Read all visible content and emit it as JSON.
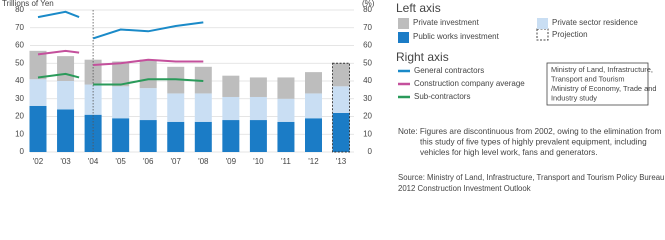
{
  "chart_data": {
    "type": "bar_line",
    "y_axis_label": "Trillions of Yen",
    "y2_axis_label": "(%)",
    "categories": [
      "'02",
      "'03",
      "'04",
      "'05",
      "'06",
      "'07",
      "'08",
      "'09",
      "'10",
      "'11",
      "'12",
      "'13"
    ],
    "ylim": [
      0,
      80
    ],
    "yticks": [
      0,
      10,
      20,
      30,
      40,
      50,
      60,
      70,
      80
    ],
    "y2lim": [
      0,
      80
    ],
    "y2ticks": [
      0,
      10,
      20,
      30,
      40,
      50,
      60,
      70,
      80
    ],
    "grid": true,
    "discontinuity_category": "'04",
    "projection_category": "'13",
    "left_axis_title": "Left axis",
    "right_axis_title": "Right axis",
    "projection_label": "Projection",
    "series": [
      {
        "name": "Public works investment",
        "color": "#1b7cc6",
        "values": [
          26,
          24,
          21,
          19,
          18,
          17,
          17,
          18,
          18,
          17,
          19,
          22
        ]
      },
      {
        "name": "Private sector residence",
        "color": "#c9def3",
        "values": [
          15,
          16,
          17,
          18,
          18,
          16,
          16,
          13,
          13,
          13,
          14,
          15
        ]
      },
      {
        "name": "Private investment",
        "color": "#bdbdbd",
        "values": [
          16,
          14,
          14,
          14,
          16,
          15,
          15,
          12,
          11,
          12,
          12,
          13
        ]
      },
      {
        "name": "General contractors",
        "color": "#1a8ac8",
        "axis": "y2",
        "x": [
          "'02",
          "'03",
          "'04",
          "'04",
          "'04",
          "'05",
          "'06",
          "'07",
          "'08"
        ],
        "values": [
          76,
          79,
          76,
          null,
          64,
          69,
          68,
          71,
          73
        ]
      },
      {
        "name": "Construction company average",
        "color": "#c4509c",
        "axis": "y2",
        "x": [
          "'02",
          "'03",
          "'04",
          "'04",
          "'04",
          "'05",
          "'06",
          "'07",
          "'08"
        ],
        "values": [
          55,
          57,
          56,
          null,
          49,
          50,
          52,
          51,
          51
        ]
      },
      {
        "name": "Sub-contractors",
        "color": "#2a9a5a",
        "axis": "y2",
        "x": [
          "'02",
          "'03",
          "'04",
          "'04",
          "'04",
          "'05",
          "'06",
          "'07",
          "'08"
        ],
        "values": [
          42,
          44,
          42,
          null,
          38,
          38,
          41,
          41,
          40
        ]
      }
    ],
    "source_box": [
      "Ministry of Land, Infrastructure,",
      "Transport and Tourism",
      "/Ministry of Economy, Trade and",
      "Industry study"
    ],
    "note": [
      "Note: Figures are discontinuous from 2002, owing to the elimination from",
      "this study of five types of highly prevalent equipment, including",
      "vehicles for high level work, fans and generators."
    ],
    "source": [
      "Source: Ministry of Land, Infrastructure, Transport and Tourism Policy Bureau, Fiscal",
      "2012 Construction Investment Outlook"
    ]
  }
}
